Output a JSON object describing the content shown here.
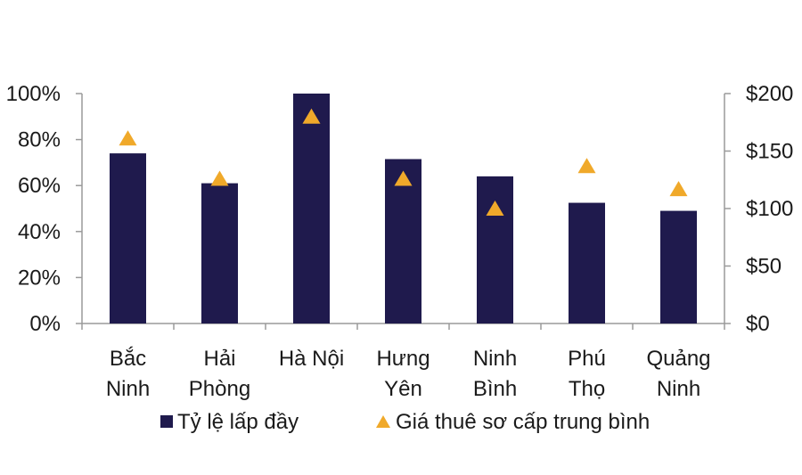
{
  "chart_data": {
    "type": "bar",
    "categories": [
      [
        "Bắc",
        "Ninh"
      ],
      [
        "Hải",
        "Phòng"
      ],
      [
        "Hà Nội"
      ],
      [
        "Hưng",
        "Yên"
      ],
      [
        "Ninh",
        "Bình"
      ],
      [
        "Phú",
        "Thọ"
      ],
      [
        "Quảng",
        "Ninh"
      ]
    ],
    "series": [
      {
        "name": "Tỷ lệ lấp đầy",
        "type": "bar",
        "axis": "left",
        "values": [
          74,
          61,
          100,
          71.5,
          64,
          52.5,
          49
        ]
      },
      {
        "name": "Giá thuê sơ cấp trung bình",
        "type": "marker",
        "marker": "triangle",
        "axis": "right",
        "values": [
          161,
          126,
          180,
          126,
          100,
          137,
          117
        ]
      }
    ],
    "left_axis": {
      "ticks": [
        "0%",
        "20%",
        "40%",
        "60%",
        "80%",
        "100%"
      ],
      "range": [
        0,
        100
      ]
    },
    "right_axis": {
      "ticks": [
        "$0",
        "$50",
        "$100",
        "$150",
        "$200"
      ],
      "range": [
        0,
        200
      ]
    },
    "grid": false,
    "legend_position": "bottom",
    "colors": {
      "bar": "#1f1a4d",
      "marker": "#f0a92a",
      "axis": "#9a9a9a"
    }
  }
}
